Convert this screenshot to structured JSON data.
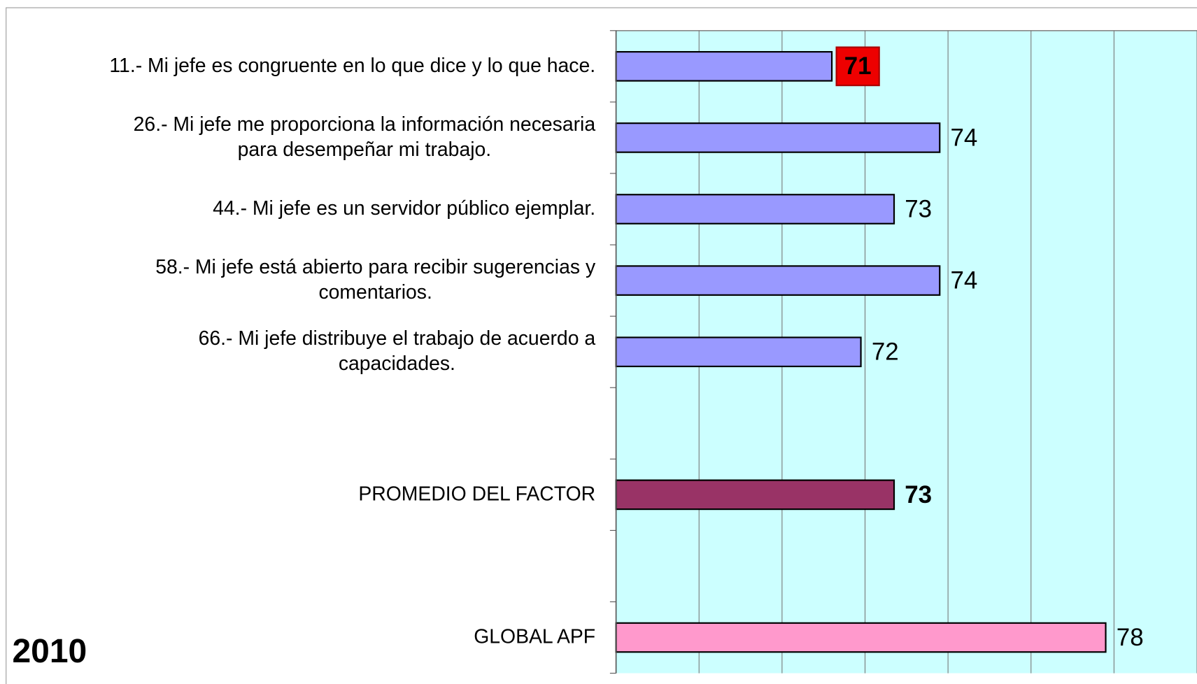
{
  "chart_data": {
    "type": "bar",
    "orientation": "horizontal",
    "categories": [
      [
        "11.- Mi jefe es congruente en lo que dice y lo que hace."
      ],
      [
        "26.- Mi jefe me proporciona la información necesaria",
        "para desempeñar mi trabajo."
      ],
      [
        "44.- Mi jefe es un servidor público ejemplar."
      ],
      [
        "58.- Mi jefe está abierto para recibir sugerencias y",
        "comentarios."
      ],
      [
        "66.- Mi jefe distribuye el trabajo de acuerdo a",
        "capacidades."
      ],
      null,
      [
        "PROMEDIO DEL FACTOR"
      ],
      null,
      [
        "GLOBAL APF"
      ]
    ],
    "values": [
      71.2,
      73.8,
      72.7,
      73.8,
      71.9,
      null,
      72.7,
      null,
      77.8
    ],
    "value_labels": [
      "71",
      "74",
      "73",
      "74",
      "72",
      null,
      "73",
      null,
      "78"
    ],
    "label_styles": [
      "boxed",
      "plain",
      "plain",
      "plain",
      "plain",
      null,
      "bold",
      null,
      "plain"
    ],
    "colors": [
      "#9999ff",
      "#9999ff",
      "#9999ff",
      "#9999ff",
      "#9999ff",
      null,
      "#993366",
      null,
      "#ff99cc"
    ],
    "xlim": [
      66,
      80
    ],
    "xticks": [
      66,
      68,
      70,
      72,
      74,
      76,
      78,
      80
    ],
    "grid": true,
    "annotation": "2010"
  }
}
